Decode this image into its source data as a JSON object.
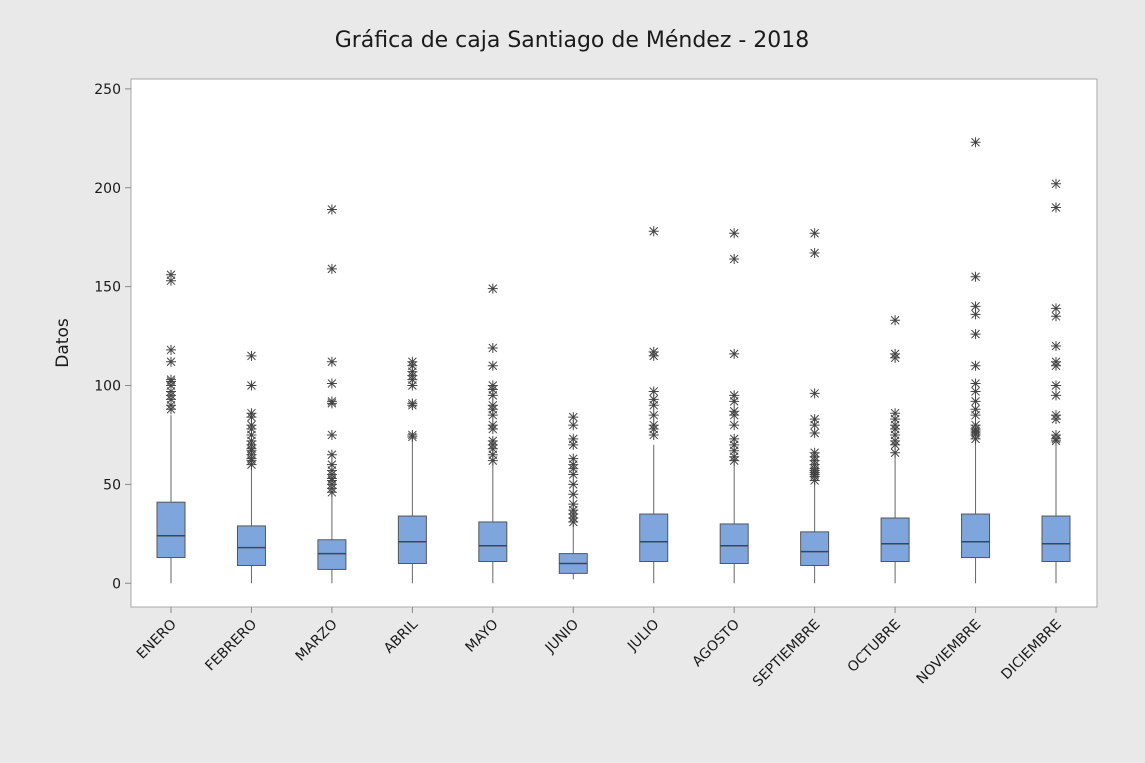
{
  "chart_data": {
    "type": "box",
    "title": "Gráfica de caja Santiago de Méndez - 2018",
    "y_label": "Datos",
    "categories": [
      "ENERO",
      "FEBRERO",
      "MARZO",
      "ABRIL",
      "MAYO",
      "JUNIO",
      "JULIO",
      "AGOSTO",
      "SEPTIEMBRE",
      "OCTUBRE",
      "NOVIEMBRE",
      "DICIEMBRE"
    ],
    "color": "#7ea6dc",
    "ylim": [
      -12,
      255
    ],
    "yticks": [
      0,
      50,
      100,
      150,
      200,
      250
    ],
    "boxes": [
      {
        "min": 0,
        "q1": 13,
        "median": 24,
        "q3": 41,
        "max": 85,
        "outliers": [
          88,
          90,
          93,
          95,
          97,
          100,
          102,
          103,
          112,
          118,
          153,
          156
        ]
      },
      {
        "min": 0,
        "q1": 9,
        "median": 18,
        "q3": 29,
        "max": 59,
        "outliers": [
          60,
          62,
          63,
          65,
          67,
          68,
          70,
          72,
          75,
          78,
          80,
          84,
          86,
          100,
          115
        ]
      },
      {
        "min": 0,
        "q1": 7,
        "median": 15,
        "q3": 22,
        "max": 45,
        "outliers": [
          46,
          48,
          50,
          52,
          53,
          55,
          57,
          60,
          65,
          75,
          91,
          92,
          101,
          112,
          159,
          189
        ]
      },
      {
        "min": 0,
        "q1": 10,
        "median": 21,
        "q3": 34,
        "max": 73,
        "outliers": [
          74,
          75,
          90,
          91,
          100,
          103,
          105,
          107,
          110,
          112
        ]
      },
      {
        "min": 0,
        "q1": 11,
        "median": 19,
        "q3": 31,
        "max": 61,
        "outliers": [
          62,
          65,
          68,
          70,
          72,
          78,
          80,
          85,
          88,
          90,
          95,
          98,
          100,
          110,
          119,
          149
        ]
      },
      {
        "min": 2,
        "q1": 5,
        "median": 10,
        "q3": 15,
        "max": 30,
        "outliers": [
          31,
          33,
          35,
          37,
          40,
          45,
          50,
          55,
          58,
          60,
          63,
          70,
          73,
          80,
          84
        ]
      },
      {
        "min": 0,
        "q1": 11,
        "median": 21,
        "q3": 35,
        "max": 70,
        "outliers": [
          75,
          78,
          80,
          85,
          90,
          93,
          97,
          115,
          117,
          178
        ]
      },
      {
        "min": 0,
        "q1": 10,
        "median": 19,
        "q3": 30,
        "max": 61,
        "outliers": [
          62,
          64,
          67,
          70,
          73,
          80,
          85,
          87,
          92,
          95,
          116,
          164,
          177
        ]
      },
      {
        "min": 0,
        "q1": 9,
        "median": 16,
        "q3": 26,
        "max": 51,
        "outliers": [
          52,
          54,
          55,
          56,
          57,
          58,
          60,
          62,
          64,
          66,
          76,
          80,
          83,
          96,
          167,
          177
        ]
      },
      {
        "min": 0,
        "q1": 11,
        "median": 20,
        "q3": 33,
        "max": 65,
        "outliers": [
          66,
          70,
          72,
          75,
          78,
          80,
          83,
          86,
          114,
          116,
          133
        ]
      },
      {
        "min": 0,
        "q1": 13,
        "median": 21,
        "q3": 35,
        "max": 72,
        "outliers": [
          73,
          75,
          76,
          77,
          78,
          80,
          85,
          88,
          92,
          97,
          101,
          110,
          126,
          136,
          140,
          155,
          223
        ]
      },
      {
        "min": 0,
        "q1": 11,
        "median": 20,
        "q3": 34,
        "max": 71,
        "outliers": [
          72,
          73,
          75,
          83,
          85,
          95,
          100,
          110,
          112,
          120,
          135,
          139,
          190,
          202
        ]
      }
    ]
  }
}
